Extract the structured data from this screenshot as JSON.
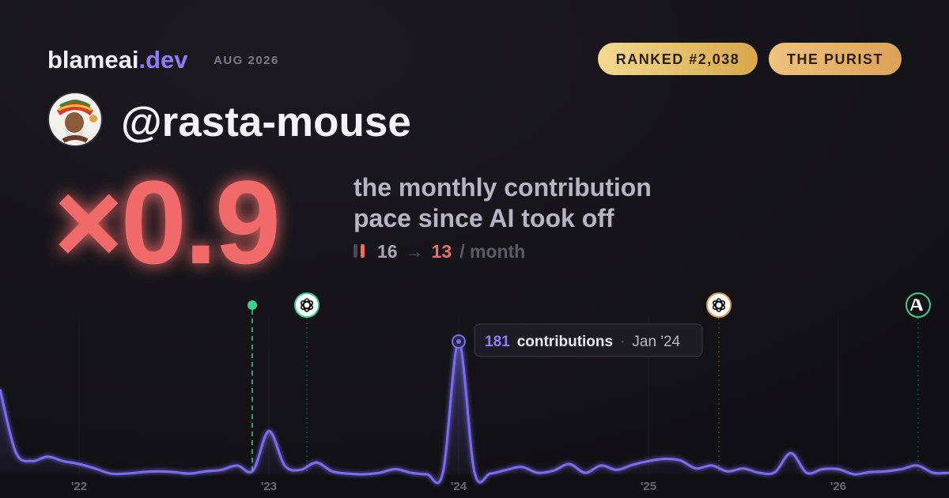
{
  "brand": {
    "name": "blameai",
    "tld": ".dev",
    "date": "AUG 2026"
  },
  "badges": [
    "RANKED #2,038",
    "THE PURIST"
  ],
  "user": {
    "handle": "@rasta-mouse"
  },
  "headline": {
    "multiplier": "×0.9",
    "line1": "the monthly contribution",
    "line2": "pace since AI took off",
    "before": 16,
    "arrow": "→",
    "after": 13,
    "unit": "/ month"
  },
  "tooltip": {
    "label": "contributions",
    "sep": "·",
    "date": "Jan '24"
  },
  "chart_data": {
    "type": "line",
    "color": "#7b6cf0",
    "categories": [
      null,
      null,
      null,
      null,
      null,
      "'22",
      null,
      null,
      null,
      null,
      null,
      null,
      null,
      null,
      null,
      null,
      null,
      "'23",
      null,
      null,
      null,
      null,
      null,
      null,
      null,
      null,
      null,
      null,
      null,
      "'24",
      null,
      null,
      null,
      null,
      null,
      null,
      null,
      null,
      null,
      null,
      null,
      "'25",
      null,
      null,
      null,
      null,
      null,
      null,
      null,
      null,
      null,
      null,
      null,
      "'26",
      null,
      null,
      null,
      null,
      null,
      null,
      null
    ],
    "values": [
      116,
      30,
      18,
      24,
      18,
      14,
      8,
      1,
      1,
      3,
      4,
      3,
      1,
      4,
      6,
      12,
      5,
      59,
      12,
      6,
      16,
      4,
      1,
      0,
      2,
      7,
      2,
      0,
      2,
      181,
      3,
      1,
      6,
      10,
      2,
      5,
      14,
      2,
      12,
      6,
      13,
      18,
      21,
      19,
      8,
      12,
      4,
      8,
      2,
      3,
      29,
      2,
      7,
      7,
      0,
      3,
      4,
      7,
      12,
      2,
      2
    ],
    "ylim": [
      0,
      200
    ]
  }
}
